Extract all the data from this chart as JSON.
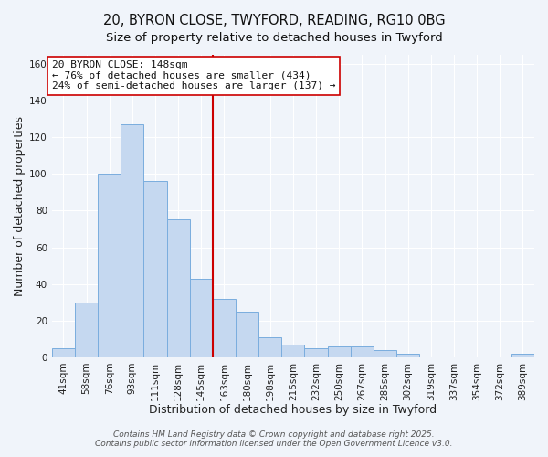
{
  "title_line1": "20, BYRON CLOSE, TWYFORD, READING, RG10 0BG",
  "title_line2": "Size of property relative to detached houses in Twyford",
  "xlabel": "Distribution of detached houses by size in Twyford",
  "ylabel": "Number of detached properties",
  "bar_labels": [
    "41sqm",
    "58sqm",
    "76sqm",
    "93sqm",
    "111sqm",
    "128sqm",
    "145sqm",
    "163sqm",
    "180sqm",
    "198sqm",
    "215sqm",
    "232sqm",
    "250sqm",
    "267sqm",
    "285sqm",
    "302sqm",
    "319sqm",
    "337sqm",
    "354sqm",
    "372sqm",
    "389sqm"
  ],
  "bar_values": [
    5,
    30,
    100,
    127,
    96,
    75,
    43,
    32,
    25,
    11,
    7,
    5,
    6,
    6,
    4,
    2,
    0,
    0,
    0,
    0,
    2
  ],
  "bar_color": "#c5d8f0",
  "bar_edge_color": "#7aadde",
  "vline_color": "#cc0000",
  "ylim": [
    0,
    165
  ],
  "yticks": [
    0,
    20,
    40,
    60,
    80,
    100,
    120,
    140,
    160
  ],
  "annotation_line1": "20 BYRON CLOSE: 148sqm",
  "annotation_line2": "← 76% of detached houses are smaller (434)",
  "annotation_line3": "24% of semi-detached houses are larger (137) →",
  "footer_line1": "Contains HM Land Registry data © Crown copyright and database right 2025.",
  "footer_line2": "Contains public sector information licensed under the Open Government Licence v3.0.",
  "background_color": "#f0f4fa",
  "plot_bg_color": "#f0f4fa",
  "grid_color": "#ffffff",
  "title_fontsize": 10.5,
  "subtitle_fontsize": 9.5,
  "axis_label_fontsize": 9,
  "tick_fontsize": 7.5,
  "annotation_fontsize": 8,
  "footer_fontsize": 6.5
}
